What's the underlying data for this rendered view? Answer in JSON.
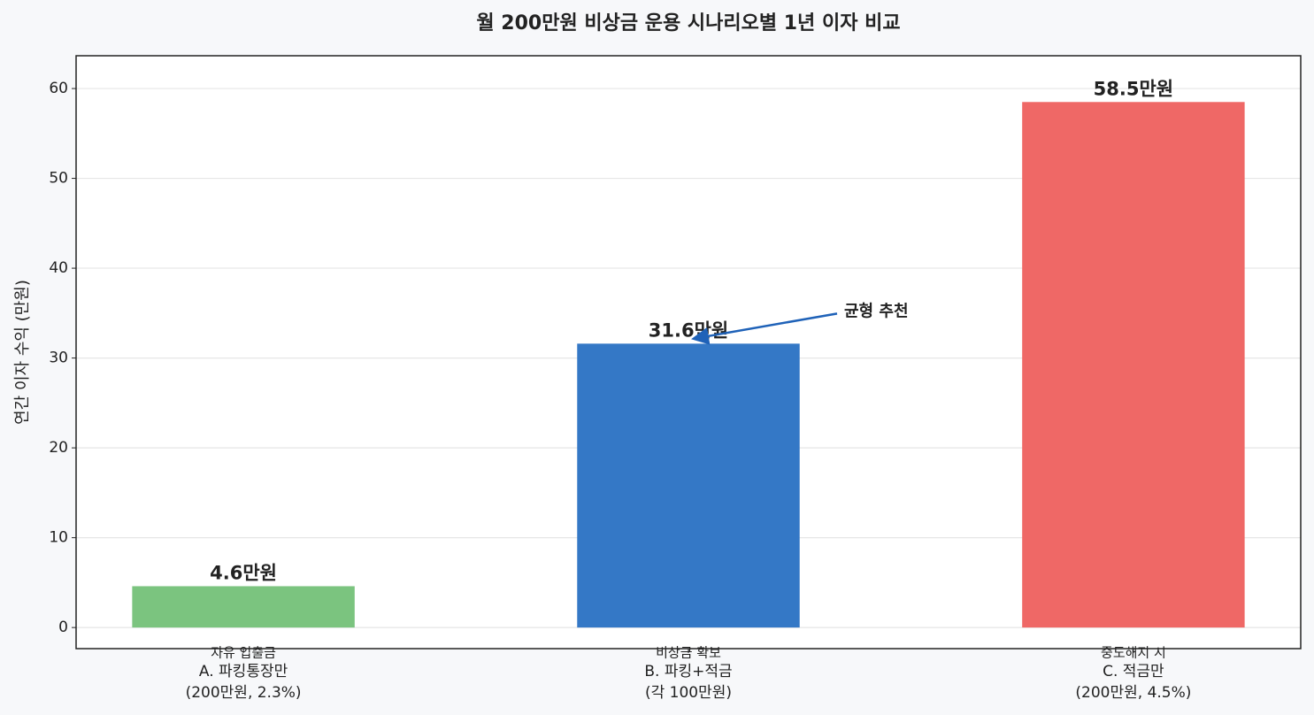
{
  "chart_data": {
    "type": "bar",
    "title": "월 200만원 비상금 운용 시나리오별 1년 이자 비교",
    "y_label": "연간 이자 수익 (만원)",
    "categories": [
      [
        "A. 파킹통장만",
        "(200만원, 2.3%)"
      ],
      [
        "B. 파킹+적금",
        "(각 100만원)"
      ],
      [
        "C. 적금만",
        "(200만원, 4.5%)"
      ]
    ],
    "notes": [
      "자유 입출금",
      "비상금 확보",
      "중도해지 시"
    ],
    "values": [
      4.6,
      31.6,
      58.5
    ],
    "value_labels": [
      "4.6만원",
      "31.6만원",
      "58.5만원"
    ],
    "colors": [
      "#7bc47f",
      "#3478c6",
      "#ef6866"
    ],
    "annotation": {
      "text": "균형 추천",
      "target": 1,
      "color": "#1f62b8"
    },
    "ylim": [
      -2.35,
      63.65
    ],
    "yticks": [
      0,
      10,
      20,
      30,
      40,
      50,
      60
    ],
    "grid": true
  }
}
